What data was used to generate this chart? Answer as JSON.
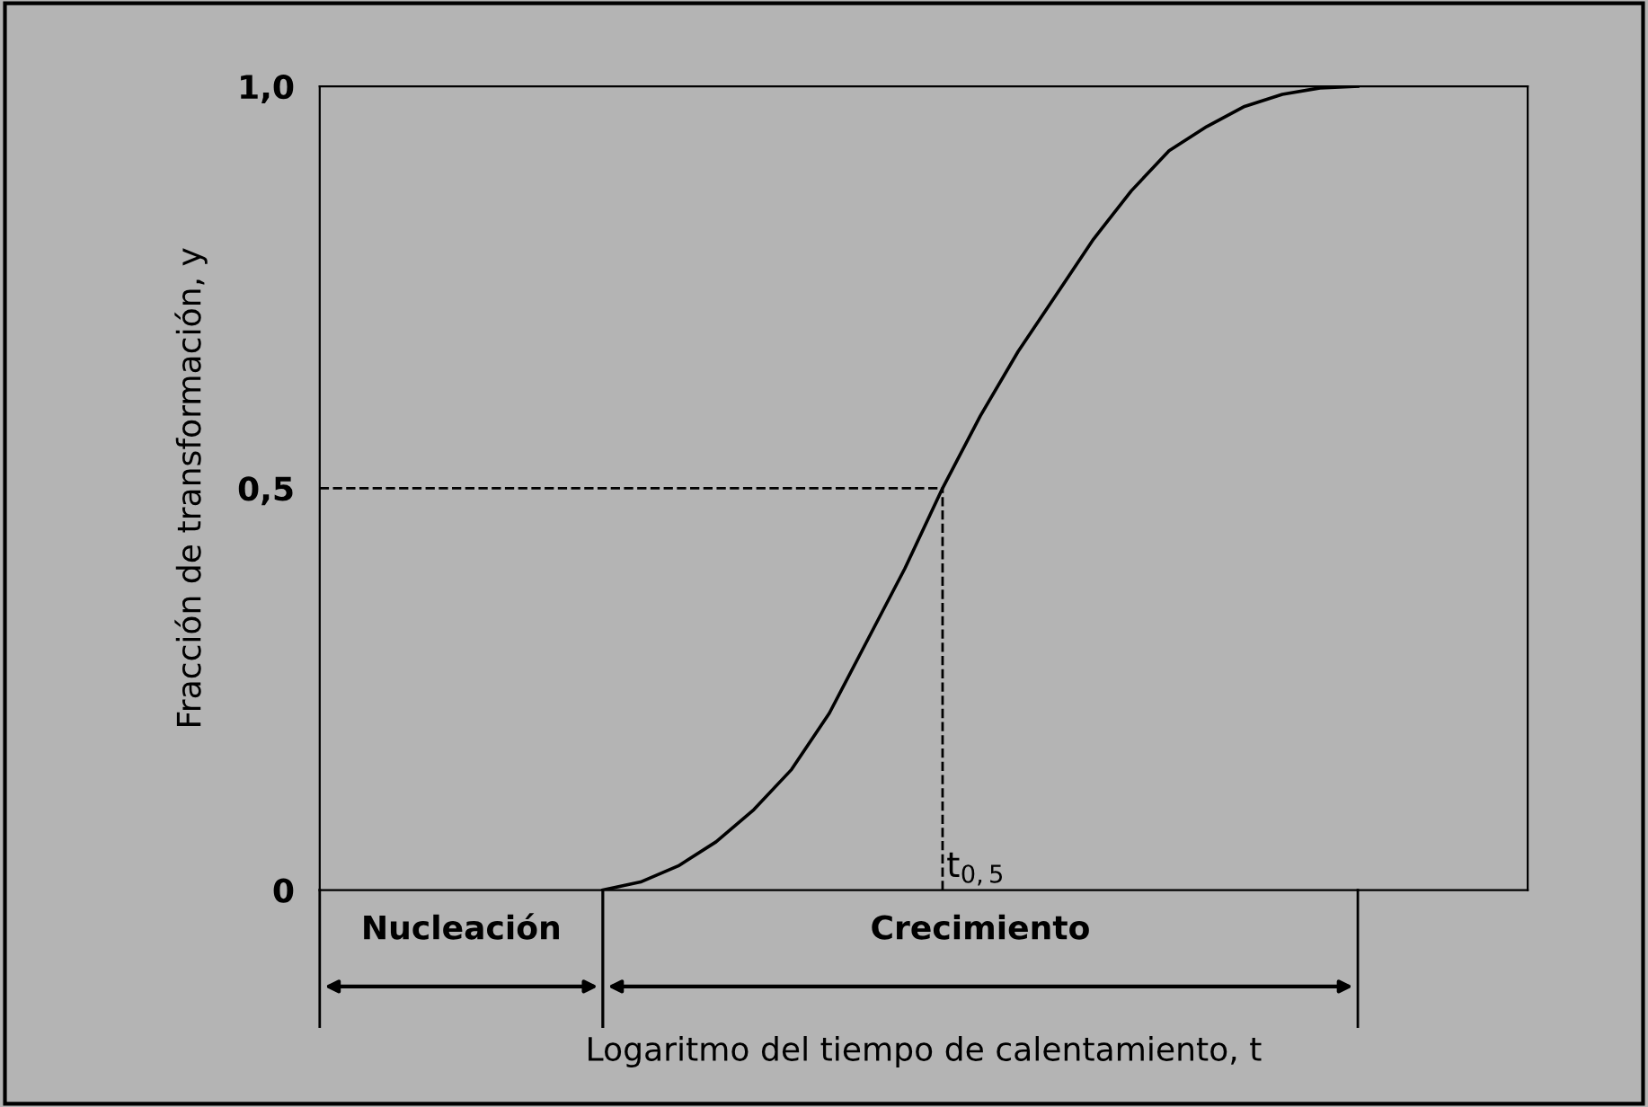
{
  "chart_data": {
    "type": "line",
    "xlabel": "Logaritmo del tiempo de calentamiento, t",
    "ylabel": "Fracción de transformación, y",
    "categories": [
      null,
      null,
      null,
      null,
      null,
      null,
      null,
      null,
      null,
      null,
      null,
      null,
      null,
      null,
      null,
      null,
      null,
      null,
      null,
      null,
      null,
      null,
      null,
      null,
      null,
      null,
      null,
      null,
      null,
      null,
      null,
      null
    ],
    "series": [
      {
        "color": "#000000",
        "values": [
          null,
          null,
          null,
          null,
          null,
          null,
          null,
          0,
          0.01,
          0.03,
          0.06,
          0.1,
          0.15,
          0.22,
          0.31,
          0.4,
          0.5,
          0.59,
          0.67,
          0.74,
          0.81,
          0.87,
          0.92,
          0.95,
          0.975,
          0.99,
          0.998,
          1.0,
          null,
          null,
          null,
          null
        ]
      }
    ],
    "ylim": [
      0,
      1
    ],
    "yticks": [
      {
        "value": 0,
        "label": "0"
      },
      {
        "value": 0.5,
        "label": "0,5"
      },
      {
        "value": 1,
        "label": "1,0"
      }
    ],
    "ref_lines": [
      {
        "axis": "y",
        "value": 0.5,
        "line_style": "dashed",
        "color": "#000000"
      }
    ],
    "annotations": [
      "Nucleación",
      "Crecimiento",
      "t$_{0,5}$"
    ],
    "legend": false,
    "marker": "none",
    "line_style": "solid"
  }
}
